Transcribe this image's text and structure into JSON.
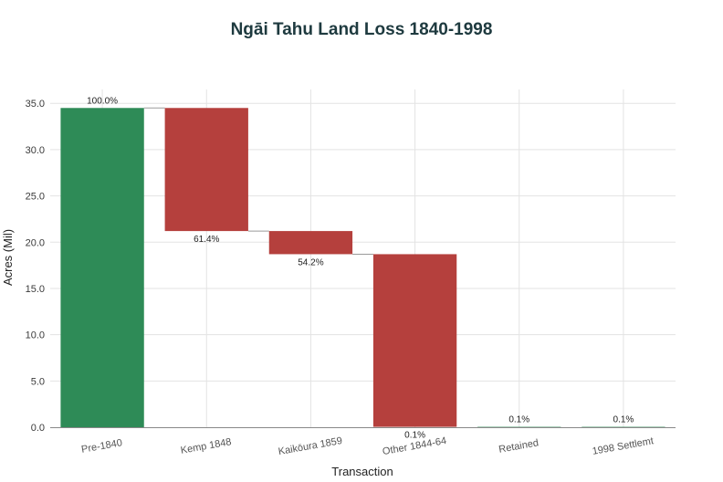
{
  "chart_data": {
    "type": "bar",
    "subtype": "waterfall",
    "title": "Ngāi Tahu Land Loss 1840-1998",
    "xlabel": "Transaction",
    "ylabel": "Acres (Mil)",
    "ylim": [
      0,
      36.5
    ],
    "yticks": [
      "0.0",
      "5.0",
      "10.0",
      "15.0",
      "20.0",
      "25.0",
      "30.0",
      "35.0"
    ],
    "grid": true,
    "categories": [
      "Pre-1840",
      "Kemp 1848",
      "Kaikōura 1859",
      "Other 1844-64",
      "Retained",
      "1998 Settlemt"
    ],
    "bars": [
      {
        "category": "Pre-1840",
        "start": 0,
        "end": 34.5,
        "kind": "total",
        "label": "100.0%"
      },
      {
        "category": "Kemp 1848",
        "start": 34.5,
        "end": 21.2,
        "kind": "decrease",
        "label": "61.4%"
      },
      {
        "category": "Kaikōura 1859",
        "start": 21.2,
        "end": 18.7,
        "kind": "decrease",
        "label": "54.2%"
      },
      {
        "category": "Other 1844-64",
        "start": 18.7,
        "end": 0.04,
        "kind": "decrease",
        "label": "0.1%"
      },
      {
        "category": "Retained",
        "start": 0,
        "end": 0.04,
        "kind": "total",
        "label": "0.1%"
      },
      {
        "category": "1998 Settlemt",
        "start": 0,
        "end": 0.04,
        "kind": "total",
        "label": "0.1%"
      }
    ],
    "colors": {
      "total": "#2e8b57",
      "decrease": "#b5403d",
      "connector": "#9a9a9a"
    }
  }
}
